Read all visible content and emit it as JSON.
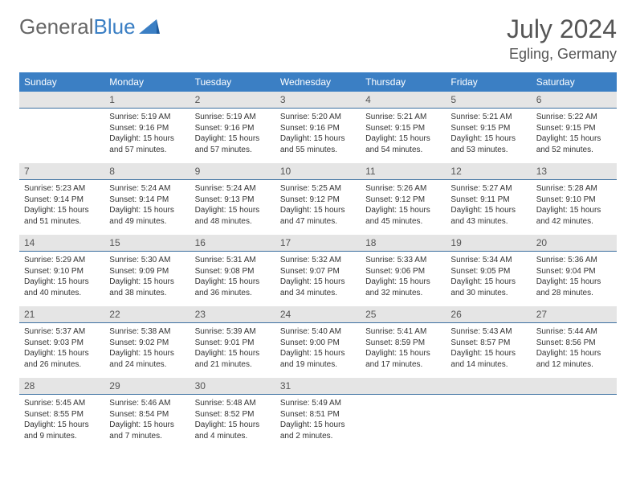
{
  "brand": {
    "part1": "General",
    "part2": "Blue"
  },
  "title": "July 2024",
  "location": "Egling, Germany",
  "colors": {
    "header_bg": "#3b7fc4",
    "header_text": "#ffffff",
    "numrow_bg": "#e5e5e5",
    "text": "#333333",
    "title": "#555555"
  },
  "day_names": [
    "Sunday",
    "Monday",
    "Tuesday",
    "Wednesday",
    "Thursday",
    "Friday",
    "Saturday"
  ],
  "weeks": [
    {
      "nums": [
        "",
        "1",
        "2",
        "3",
        "4",
        "5",
        "6"
      ],
      "cells": [
        null,
        {
          "sr": "5:19 AM",
          "ss": "9:16 PM",
          "dl": "15 hours and 57 minutes."
        },
        {
          "sr": "5:19 AM",
          "ss": "9:16 PM",
          "dl": "15 hours and 57 minutes."
        },
        {
          "sr": "5:20 AM",
          "ss": "9:16 PM",
          "dl": "15 hours and 55 minutes."
        },
        {
          "sr": "5:21 AM",
          "ss": "9:15 PM",
          "dl": "15 hours and 54 minutes."
        },
        {
          "sr": "5:21 AM",
          "ss": "9:15 PM",
          "dl": "15 hours and 53 minutes."
        },
        {
          "sr": "5:22 AM",
          "ss": "9:15 PM",
          "dl": "15 hours and 52 minutes."
        }
      ]
    },
    {
      "nums": [
        "7",
        "8",
        "9",
        "10",
        "11",
        "12",
        "13"
      ],
      "cells": [
        {
          "sr": "5:23 AM",
          "ss": "9:14 PM",
          "dl": "15 hours and 51 minutes."
        },
        {
          "sr": "5:24 AM",
          "ss": "9:14 PM",
          "dl": "15 hours and 49 minutes."
        },
        {
          "sr": "5:24 AM",
          "ss": "9:13 PM",
          "dl": "15 hours and 48 minutes."
        },
        {
          "sr": "5:25 AM",
          "ss": "9:12 PM",
          "dl": "15 hours and 47 minutes."
        },
        {
          "sr": "5:26 AM",
          "ss": "9:12 PM",
          "dl": "15 hours and 45 minutes."
        },
        {
          "sr": "5:27 AM",
          "ss": "9:11 PM",
          "dl": "15 hours and 43 minutes."
        },
        {
          "sr": "5:28 AM",
          "ss": "9:10 PM",
          "dl": "15 hours and 42 minutes."
        }
      ]
    },
    {
      "nums": [
        "14",
        "15",
        "16",
        "17",
        "18",
        "19",
        "20"
      ],
      "cells": [
        {
          "sr": "5:29 AM",
          "ss": "9:10 PM",
          "dl": "15 hours and 40 minutes."
        },
        {
          "sr": "5:30 AM",
          "ss": "9:09 PM",
          "dl": "15 hours and 38 minutes."
        },
        {
          "sr": "5:31 AM",
          "ss": "9:08 PM",
          "dl": "15 hours and 36 minutes."
        },
        {
          "sr": "5:32 AM",
          "ss": "9:07 PM",
          "dl": "15 hours and 34 minutes."
        },
        {
          "sr": "5:33 AM",
          "ss": "9:06 PM",
          "dl": "15 hours and 32 minutes."
        },
        {
          "sr": "5:34 AM",
          "ss": "9:05 PM",
          "dl": "15 hours and 30 minutes."
        },
        {
          "sr": "5:36 AM",
          "ss": "9:04 PM",
          "dl": "15 hours and 28 minutes."
        }
      ]
    },
    {
      "nums": [
        "21",
        "22",
        "23",
        "24",
        "25",
        "26",
        "27"
      ],
      "cells": [
        {
          "sr": "5:37 AM",
          "ss": "9:03 PM",
          "dl": "15 hours and 26 minutes."
        },
        {
          "sr": "5:38 AM",
          "ss": "9:02 PM",
          "dl": "15 hours and 24 minutes."
        },
        {
          "sr": "5:39 AM",
          "ss": "9:01 PM",
          "dl": "15 hours and 21 minutes."
        },
        {
          "sr": "5:40 AM",
          "ss": "9:00 PM",
          "dl": "15 hours and 19 minutes."
        },
        {
          "sr": "5:41 AM",
          "ss": "8:59 PM",
          "dl": "15 hours and 17 minutes."
        },
        {
          "sr": "5:43 AM",
          "ss": "8:57 PM",
          "dl": "15 hours and 14 minutes."
        },
        {
          "sr": "5:44 AM",
          "ss": "8:56 PM",
          "dl": "15 hours and 12 minutes."
        }
      ]
    },
    {
      "nums": [
        "28",
        "29",
        "30",
        "31",
        "",
        "",
        ""
      ],
      "cells": [
        {
          "sr": "5:45 AM",
          "ss": "8:55 PM",
          "dl": "15 hours and 9 minutes."
        },
        {
          "sr": "5:46 AM",
          "ss": "8:54 PM",
          "dl": "15 hours and 7 minutes."
        },
        {
          "sr": "5:48 AM",
          "ss": "8:52 PM",
          "dl": "15 hours and 4 minutes."
        },
        {
          "sr": "5:49 AM",
          "ss": "8:51 PM",
          "dl": "15 hours and 2 minutes."
        },
        null,
        null,
        null
      ]
    }
  ],
  "labels": {
    "sunrise": "Sunrise:",
    "sunset": "Sunset:",
    "daylight": "Daylight:"
  }
}
